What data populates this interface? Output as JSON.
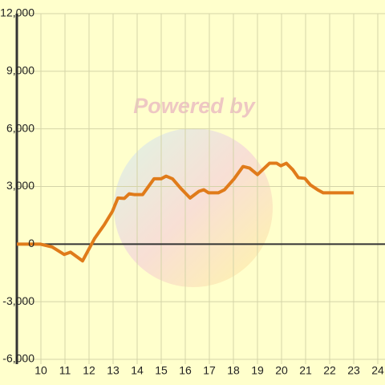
{
  "chart_data": {
    "type": "line",
    "watermark": "Powered by",
    "series": [
      {
        "color": "#e07b1a",
        "x": [
          9.0,
          9.97,
          10.47,
          10.97,
          11.23,
          11.73,
          12.23,
          12.63,
          12.97,
          13.2,
          13.47,
          13.67,
          13.87,
          14.23,
          14.7,
          15.0,
          15.2,
          15.47,
          15.83,
          16.2,
          16.57,
          16.77,
          16.97,
          17.37,
          17.63,
          18.03,
          18.4,
          18.67,
          19.0,
          19.5,
          19.8,
          19.97,
          20.2,
          20.47,
          20.7,
          20.97,
          21.2,
          21.5,
          21.73,
          22.3,
          23.0
        ],
        "values": [
          0,
          0,
          -150,
          -540,
          -420,
          -875,
          290,
          1000,
          1700,
          2400,
          2380,
          2620,
          2580,
          2580,
          3400,
          3400,
          3540,
          3400,
          2880,
          2400,
          2750,
          2830,
          2670,
          2670,
          2830,
          3400,
          4040,
          3960,
          3620,
          4210,
          4210,
          4080,
          4210,
          3870,
          3460,
          3420,
          3080,
          2830,
          2670,
          2670,
          2670
        ]
      }
    ],
    "xlim": [
      9,
      24.3
    ],
    "xticks": [
      10,
      11,
      12,
      13,
      14,
      15,
      16,
      17,
      18,
      19,
      20,
      21,
      22,
      23,
      24
    ],
    "ylim": [
      -6250,
      12000
    ],
    "yticks": [
      {
        "value": -6000,
        "label": "-6,000"
      },
      {
        "value": -3000,
        "label": "-3,000"
      },
      0,
      {
        "value": 3000,
        "label": "3,000"
      },
      {
        "value": 6000,
        "label": "6,000"
      },
      {
        "value": 9000,
        "label": "9,000"
      },
      {
        "value": 12000,
        "label": "12,000"
      }
    ],
    "grid": true
  }
}
